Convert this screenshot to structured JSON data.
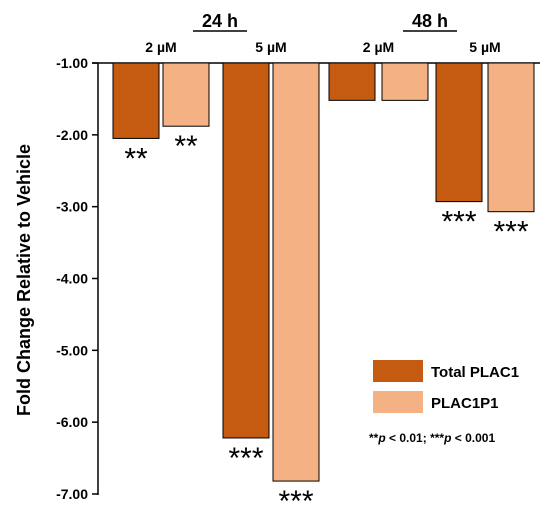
{
  "chart_data": {
    "type": "bar",
    "ylabel": "Fold Change Relative to Vehicle",
    "ylim": [
      -7.0,
      -1.0
    ],
    "yticks": [
      "-1.00",
      "-2.00",
      "-3.00",
      "-4.00",
      "-5.00",
      "-6.00",
      "-7.00"
    ],
    "groups": [
      {
        "label": "24 h",
        "concentrations": [
          {
            "label": "2 µM",
            "values": [
              -2.05,
              -1.88
            ],
            "sig": [
              "**",
              "**"
            ]
          },
          {
            "label": "5 µM",
            "values": [
              -6.22,
              -6.82
            ],
            "sig": [
              "***",
              "***"
            ]
          }
        ]
      },
      {
        "label": "48 h",
        "concentrations": [
          {
            "label": "2 µM",
            "values": [
              -1.52,
              -1.52
            ],
            "sig": [
              "",
              ""
            ]
          },
          {
            "label": "5 µM",
            "values": [
              -2.93,
              -3.07
            ],
            "sig": [
              "***",
              "***"
            ]
          }
        ]
      }
    ],
    "series": [
      {
        "name": "Total PLAC1",
        "color": "#C55A11"
      },
      {
        "name": "PLAC1P1",
        "color": "#F4B183"
      }
    ],
    "legend_position": "bottom-right",
    "significance_note": {
      "stars2": "**",
      "p_sym": "p",
      "threshold2": " < 0.01; ",
      "stars3": "***",
      "threshold3": " < 0.001"
    }
  }
}
